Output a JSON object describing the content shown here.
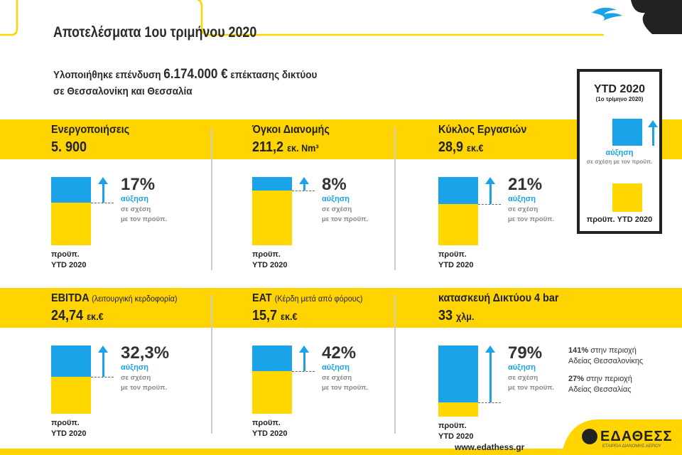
{
  "header": {
    "title": "Αποτελέσματα 1ου τριμήνου 2020",
    "investment_pre": "Υλοποιήθηκε επένδυση",
    "investment_amount": "6.174.000 €",
    "investment_post": "επέκτασης δικτύου",
    "investment_line2": "σε Θεσσαλονίκη και Θεσσαλία"
  },
  "common": {
    "increase": "αύξηση",
    "compare1": "σε σχέση",
    "compare2": "με τον προϋπ.",
    "base1": "προϋπ.",
    "base2": "YTD 2020"
  },
  "cards": [
    {
      "title": "Ενεργοποιήσεις",
      "title_note": "",
      "value": "5. 900",
      "unit": "",
      "growth": "17%"
    },
    {
      "title": "Όγκοι Διανομής",
      "title_note": "",
      "value": "211,2",
      "unit": "εκ. Nm³",
      "growth": "8%"
    },
    {
      "title": "Κύκλος Εργασιών",
      "title_note": "",
      "value": "28,9",
      "unit": "εκ.€",
      "growth": "21%"
    },
    {
      "title": "EBITDA",
      "title_note": "(λειτουργική κερδοφορία)",
      "value": "24,74",
      "unit": "εκ.€",
      "growth": "32,3%"
    },
    {
      "title": "EAT",
      "title_note": "(Κέρδη μετά από φόρους)",
      "value": "15,7",
      "unit": "εκ.€",
      "growth": "42%"
    },
    {
      "title": "κατασκευή Δικτύου 4 bar",
      "title_note": "",
      "value": "33",
      "unit": "χλμ.",
      "growth": "79%"
    }
  ],
  "network_notes": [
    {
      "pct": "141%",
      "text1": "στην περιοχή",
      "text2": "Αδείας Θεσσαλονίκης"
    },
    {
      "pct": "27%",
      "text1": "στην περιοχή",
      "text2": "Αδείας Θεσσαλίας"
    }
  ],
  "legend": {
    "title": "YTD 2020",
    "subtitle": "(1ο τρίμηνο 2020)",
    "increase": "αύξηση",
    "increase_note": "σε σχέση με τον προϋπ.",
    "base": "προϋπ. YTD 2020"
  },
  "footer": {
    "url": "www.edathess.gr",
    "logo": "ΕΔΑΘΕΣΣ",
    "logo_sub": "ΕΤΑΙΡΕΙΑ ΔΙΑΝΟΜΗΣ ΑΕΡΙΟΥ"
  },
  "colors": {
    "yellow": "#ffd400",
    "blue": "#1aa3e8"
  }
}
